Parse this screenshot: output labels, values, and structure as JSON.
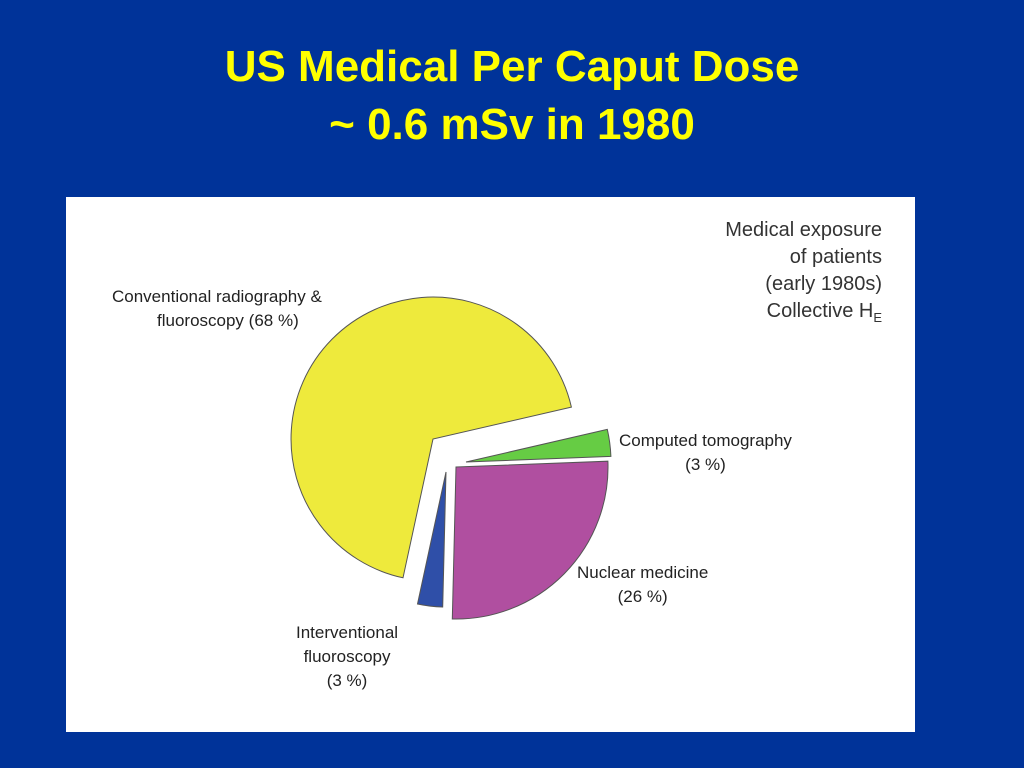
{
  "slide": {
    "title_line1": "US Medical Per Caput Dose",
    "title_line2": "~ 0.6 mSv in 1980"
  },
  "chart_data": {
    "type": "pie",
    "exploded": true,
    "note": [
      "Medical exposure",
      "of patients",
      "(early 1980s)",
      "Collective H"
    ],
    "note_subscript": "E",
    "slices": [
      {
        "key": "ct",
        "label_lines": [
          "Computed tomography",
          "(3 %)"
        ],
        "value": 3,
        "color": "#66cc44"
      },
      {
        "key": "nm",
        "label_lines": [
          "Nuclear medicine",
          "(26 %)"
        ],
        "value": 26,
        "color": "#b04fa0"
      },
      {
        "key": "if",
        "label_lines": [
          "Interventional",
          "fluoroscopy",
          "(3 %)"
        ],
        "value": 3,
        "color": "#2f4fa8"
      },
      {
        "key": "crf",
        "label_lines": [
          "Conventional radiography &",
          "fluoroscopy (68 %)"
        ],
        "value": 68,
        "color": "#eeea3c"
      }
    ]
  }
}
